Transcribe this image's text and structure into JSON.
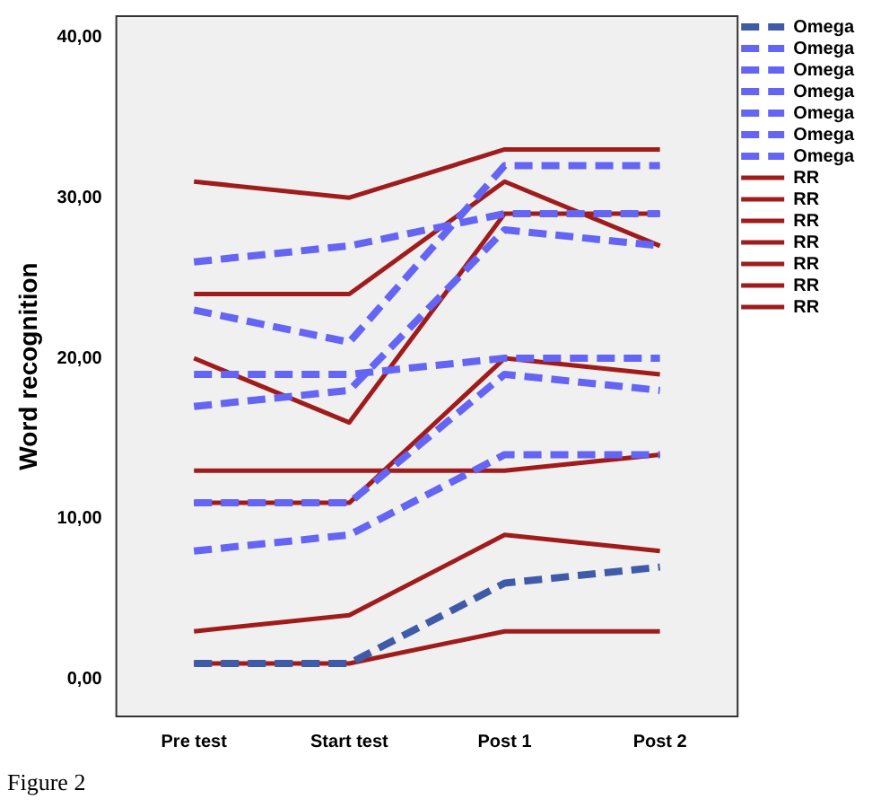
{
  "chart_data": {
    "type": "line",
    "ylabel": "Word recognition",
    "categories": [
      "Pre test",
      "Start test",
      "Post 1",
      "Post 2"
    ],
    "ylim": [
      -2.3,
      41.3
    ],
    "yticks": [
      {
        "value": 0,
        "label": "0,00"
      },
      {
        "value": 10,
        "label": "10,00"
      },
      {
        "value": 20,
        "label": "20,00"
      },
      {
        "value": 30,
        "label": "30,00"
      },
      {
        "value": 40,
        "label": "40,00"
      }
    ],
    "grid": false,
    "legend": "right",
    "marker": "none",
    "series": [
      {
        "name": "Omega",
        "color": "#3f5aa8",
        "line_style": "dashed",
        "values": [
          1,
          1,
          6,
          7
        ]
      },
      {
        "name": "Omega",
        "color": "#6464f5",
        "line_style": "dashed",
        "values": [
          26,
          27,
          29,
          29
        ]
      },
      {
        "name": "Omega",
        "color": "#6464f5",
        "line_style": "dashed",
        "values": [
          23,
          21,
          32,
          32
        ]
      },
      {
        "name": "Omega",
        "color": "#6464f5",
        "line_style": "dashed",
        "values": [
          17,
          18,
          28,
          27
        ]
      },
      {
        "name": "Omega",
        "color": "#6464f5",
        "line_style": "dashed",
        "values": [
          19,
          19,
          20,
          20
        ]
      },
      {
        "name": "Omega",
        "color": "#6464f5",
        "line_style": "dashed",
        "values": [
          11,
          11,
          19,
          18
        ]
      },
      {
        "name": "Omega",
        "color": "#6464f5",
        "line_style": "dashed",
        "values": [
          8,
          9,
          14,
          14
        ]
      },
      {
        "name": "RR",
        "color": "#a01c1c",
        "line_style": "solid",
        "values": [
          31,
          30,
          33,
          33
        ]
      },
      {
        "name": "RR",
        "color": "#a01c1c",
        "line_style": "solid",
        "values": [
          24,
          24,
          31,
          27
        ]
      },
      {
        "name": "RR",
        "color": "#a01c1c",
        "line_style": "solid",
        "values": [
          20,
          16,
          29,
          29
        ]
      },
      {
        "name": "RR",
        "color": "#a01c1c",
        "line_style": "solid",
        "values": [
          11,
          11,
          20,
          19
        ]
      },
      {
        "name": "RR",
        "color": "#a01c1c",
        "line_style": "solid",
        "values": [
          13,
          13,
          13,
          14
        ]
      },
      {
        "name": "RR",
        "color": "#a01c1c",
        "line_style": "solid",
        "values": [
          3,
          4,
          9,
          8
        ]
      },
      {
        "name": "RR",
        "color": "#a01c1c",
        "line_style": "solid",
        "values": [
          1,
          1,
          3,
          3
        ]
      }
    ],
    "annotations": [
      "Figure 2"
    ]
  }
}
